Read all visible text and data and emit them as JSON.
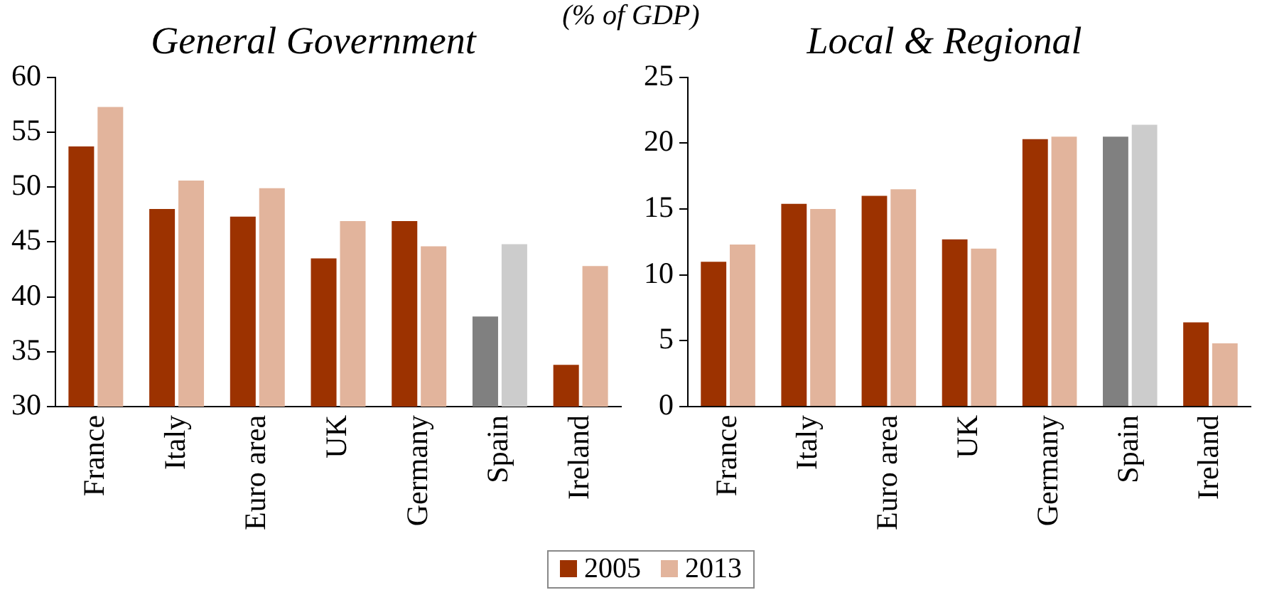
{
  "chart_data": [
    {
      "type": "bar",
      "title": "General Government",
      "annotations": [
        "(% of GDP)"
      ],
      "categories": [
        "France",
        "Italy",
        "Euro area",
        "UK",
        "Germany",
        "Spain",
        "Ireland"
      ],
      "series": [
        {
          "name": "2005",
          "color": "#9c3200",
          "colors": [
            null,
            null,
            null,
            null,
            null,
            "#808080",
            null
          ],
          "values": [
            53.7,
            48.0,
            47.3,
            43.5,
            46.9,
            38.2,
            33.8
          ]
        },
        {
          "name": "2013",
          "color": "#e2b49c",
          "colors": [
            null,
            null,
            null,
            null,
            null,
            "#cccccc",
            null
          ],
          "values": [
            57.3,
            50.6,
            49.9,
            46.9,
            44.6,
            44.8,
            42.8
          ]
        }
      ],
      "ylim": [
        30,
        60
      ],
      "yticks": [
        30,
        35,
        40,
        45,
        50,
        55,
        60
      ],
      "grid": false,
      "legend": "bottom"
    },
    {
      "type": "bar",
      "title": "Local & Regional",
      "categories": [
        "France",
        "Italy",
        "Euro area",
        "UK",
        "Germany",
        "Spain",
        "Ireland"
      ],
      "series": [
        {
          "color": "#9c3200",
          "colors": [
            null,
            null,
            null,
            null,
            null,
            "#808080",
            null
          ],
          "values": [
            11.0,
            15.4,
            16.0,
            12.7,
            20.3,
            20.5,
            6.4
          ]
        },
        {
          "color": "#e2b49c",
          "colors": [
            null,
            null,
            null,
            null,
            null,
            "#cccccc",
            null
          ],
          "values": [
            12.3,
            15.0,
            16.5,
            12.0,
            20.5,
            21.4,
            4.8
          ]
        }
      ],
      "ylim": [
        0,
        25
      ],
      "yticks": [
        0,
        5,
        10,
        15,
        20,
        25
      ],
      "grid": false
    }
  ]
}
